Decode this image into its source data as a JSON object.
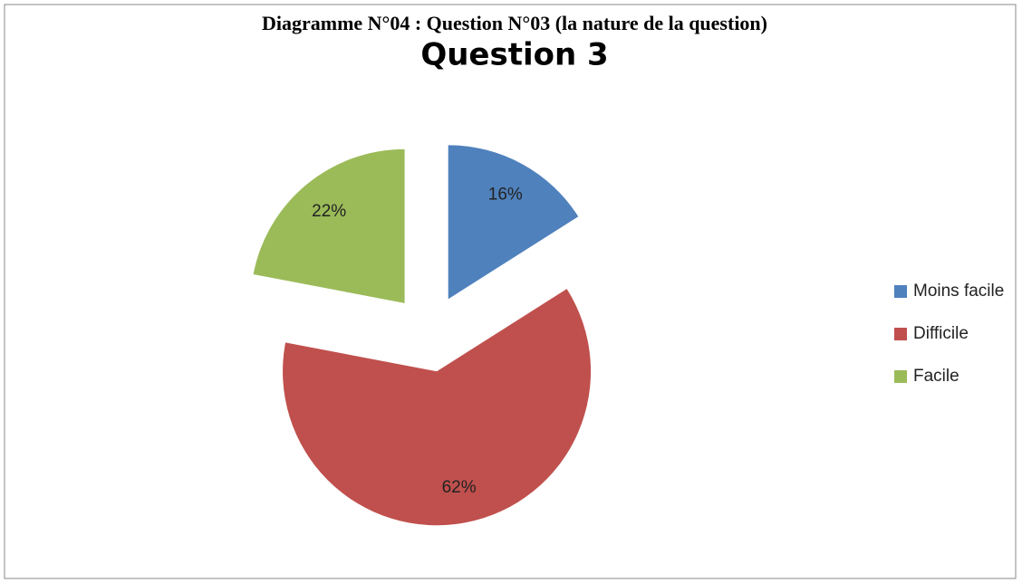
{
  "caption": "Diagramme N°04 : Question N°03 (la nature de la question)",
  "chart_data": {
    "type": "pie",
    "title": "Question 3",
    "categories": [
      "Moins facile",
      "Difficile",
      "Facile"
    ],
    "values": [
      16,
      62,
      22
    ],
    "value_labels": [
      "16%",
      "62%",
      "22%"
    ],
    "colors": [
      "#4f81bd",
      "#c0504d",
      "#9bbb59"
    ],
    "legend": "right"
  }
}
